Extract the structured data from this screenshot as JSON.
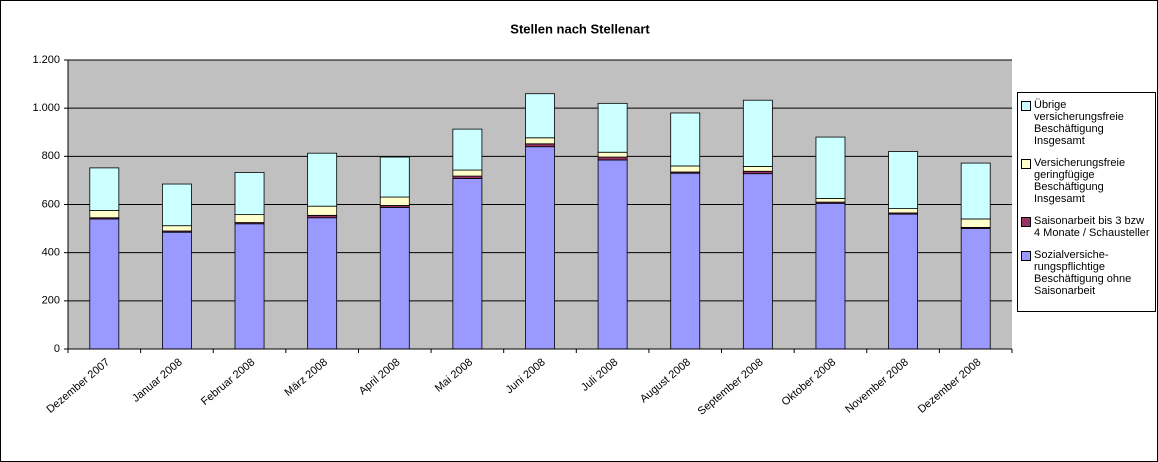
{
  "chart_data": {
    "type": "stacked-bar",
    "title": "Stellen nach Stellenart",
    "categories": [
      "Dezember 2007",
      "Januar 2008",
      "Februar 2008",
      "März 2008",
      "April 2008",
      "Mai 2008",
      "Juni 2008",
      "Juli 2008",
      "August 2008",
      "September 2008",
      "Oktober 2008",
      "November 2008",
      "Dezember 2008"
    ],
    "series": [
      {
        "name": "Sozialversiche-rungspflichtige Beschäftigung ohne Saisonarbeit",
        "color": "#9999ff",
        "values": [
          540,
          485,
          520,
          545,
          588,
          708,
          840,
          785,
          730,
          728,
          605,
          560,
          500
        ]
      },
      {
        "name": "Saisonarbeit bis 3 bzw 4 Monate / Schausteller",
        "color": "#993366",
        "values": [
          5,
          5,
          5,
          10,
          8,
          10,
          12,
          12,
          5,
          10,
          5,
          5,
          5
        ]
      },
      {
        "name": "Versicherungsfreie geringfügige Beschäftigung Insgesamt",
        "color": "#ffffcc",
        "values": [
          30,
          22,
          33,
          38,
          35,
          25,
          25,
          20,
          25,
          20,
          15,
          18,
          35
        ]
      },
      {
        "name": "Übrige versicherungsfreie Beschäftigung Insgesamt",
        "color": "#ccffff",
        "values": [
          177,
          173,
          175,
          220,
          166,
          170,
          183,
          203,
          220,
          275,
          255,
          237,
          232
        ]
      }
    ],
    "ylim": [
      0,
      1200
    ],
    "yticks": [
      0,
      200,
      400,
      600,
      800,
      {
        "value": 1000,
        "label": "1.000"
      },
      {
        "value": 1200,
        "label": "1.200"
      }
    ],
    "grid": true,
    "legend": "right"
  }
}
